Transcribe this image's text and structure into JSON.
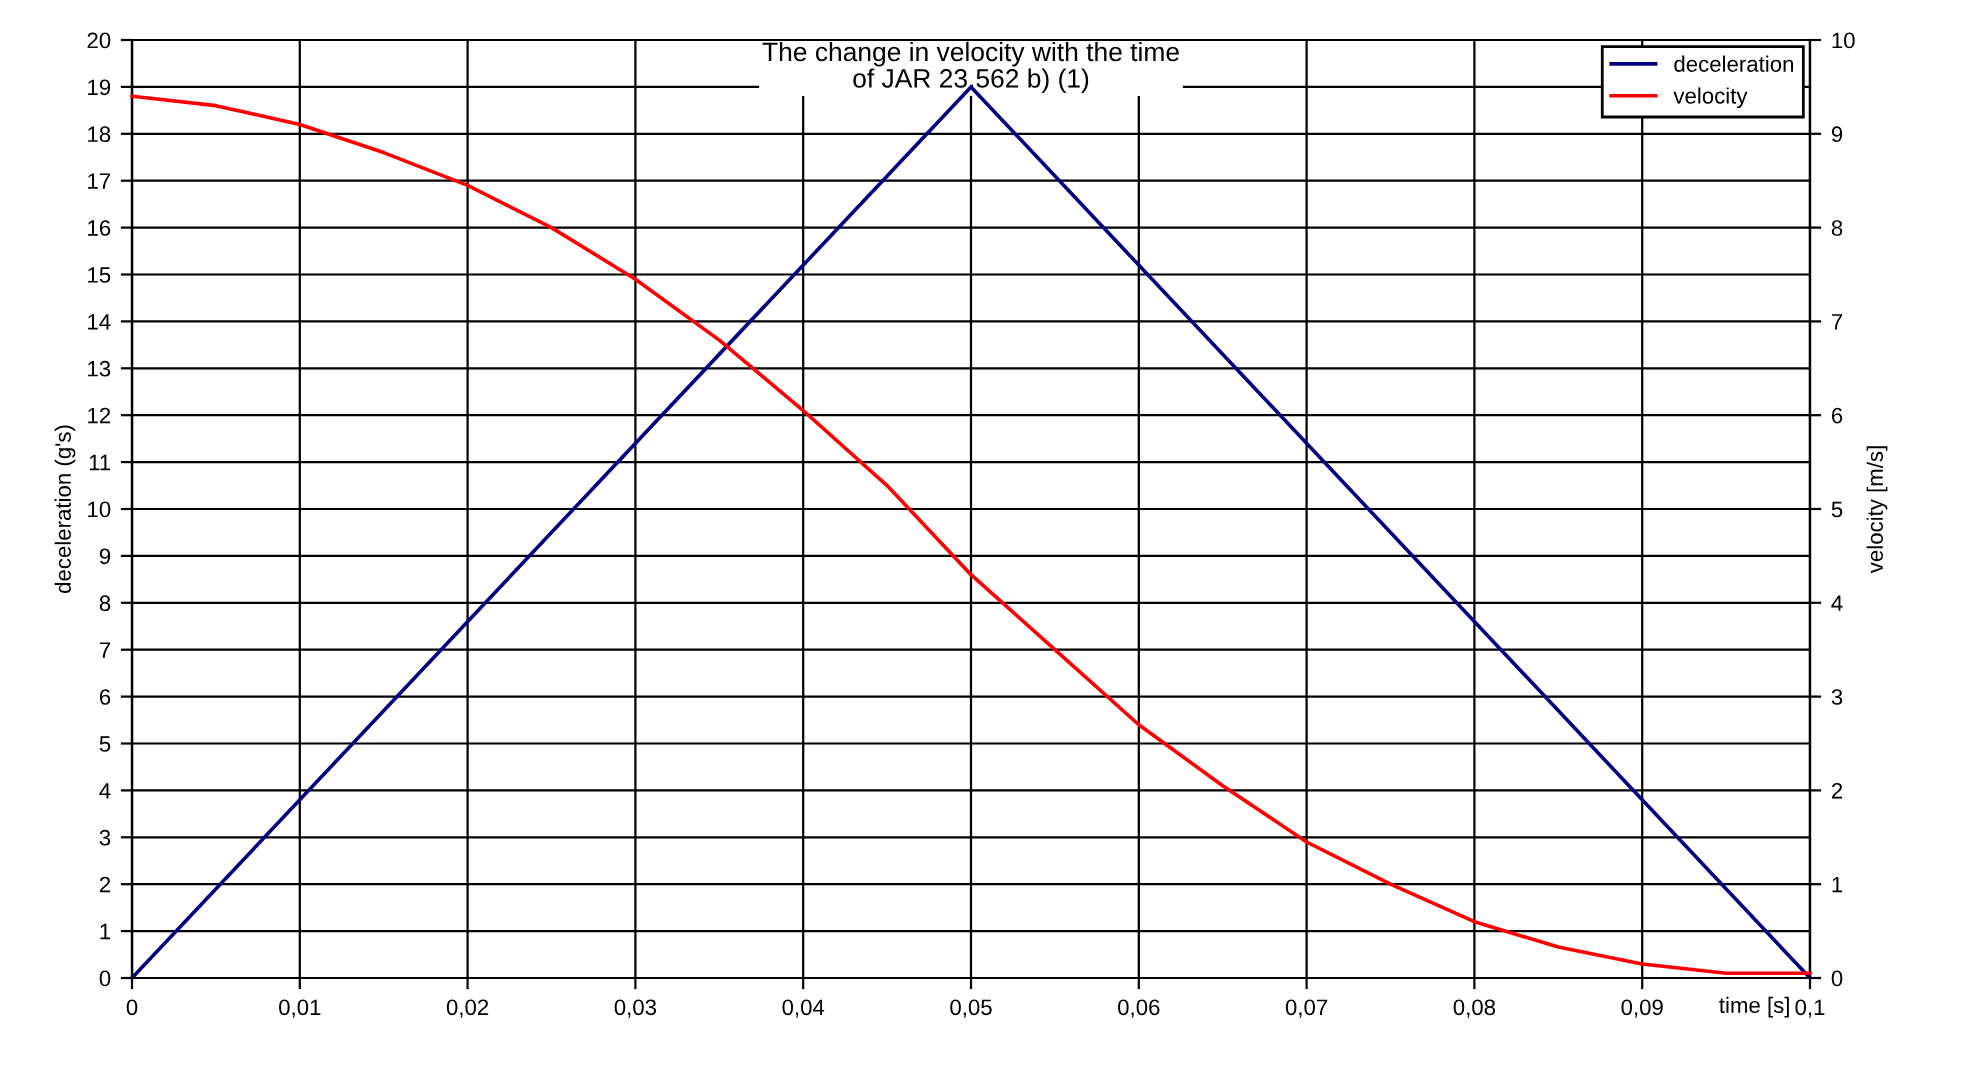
{
  "chart_data": {
    "type": "line",
    "title": "The change in velocity with the time\nof JAR 23.562 b) (1)",
    "xlabel": "time [s]",
    "ylabel": "deceleration (g's)",
    "y2label": "velocity [m/s]",
    "series": [
      {
        "name": "deceleration",
        "color": "#000080",
        "x": [
          0,
          0.05,
          0.1
        ],
        "values": [
          0,
          19,
          0
        ]
      },
      {
        "name": "velocity",
        "color": "#ff0000",
        "axis": "y2",
        "x": [
          0,
          0.005,
          0.01,
          0.015,
          0.02,
          0.025,
          0.03,
          0.035,
          0.04,
          0.045,
          0.05,
          0.055,
          0.06,
          0.065,
          0.07,
          0.075,
          0.08,
          0.085,
          0.09,
          0.095,
          0.1
        ],
        "values": [
          9.4,
          9.3,
          9.1,
          8.8,
          8.45,
          8.0,
          7.45,
          6.8,
          6.05,
          5.25,
          4.3,
          3.5,
          2.7,
          2.05,
          1.45,
          1.0,
          0.6,
          0.33,
          0.15,
          0.05,
          0.05
        ]
      }
    ],
    "xlim": [
      0,
      0.1
    ],
    "xticks": [
      0,
      {
        "value": 0.01,
        "label": "0,01"
      },
      {
        "value": 0.02,
        "label": "0,02"
      },
      {
        "value": 0.03,
        "label": "0,03"
      },
      {
        "value": 0.04,
        "label": "0,04"
      },
      {
        "value": 0.05,
        "label": "0,05"
      },
      {
        "value": 0.06,
        "label": "0,06"
      },
      {
        "value": 0.07,
        "label": "0,07"
      },
      {
        "value": 0.08,
        "label": "0,08"
      },
      {
        "value": 0.09,
        "label": "0,09"
      },
      {
        "value": 0.1,
        "label": "0,1"
      }
    ],
    "ylim": [
      0,
      20
    ],
    "yticks": [
      0,
      1,
      2,
      3,
      4,
      5,
      6,
      7,
      8,
      9,
      10,
      11,
      12,
      13,
      14,
      15,
      16,
      17,
      18,
      19,
      20
    ],
    "y2lim": [
      0,
      10
    ],
    "y2ticks": [
      0,
      1,
      2,
      3,
      4,
      5,
      6,
      7,
      8,
      9,
      10
    ],
    "grid": true,
    "legend": "top right",
    "marker": "none",
    "line_style": "solid"
  }
}
